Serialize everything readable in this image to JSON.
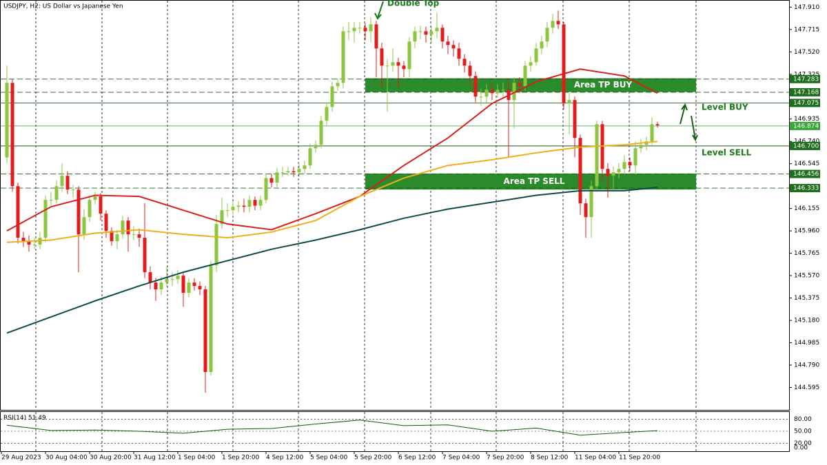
{
  "chart_data": {
    "type": "candlestick",
    "title": "USDJPY, H2:  US Dollar vs Japanese Yen",
    "up_color": "#8cc63f",
    "down_color": "#e31b1b",
    "ylim": [
      144.4,
      147.96
    ],
    "yticks": [
      {
        "value": 147.91,
        "label": "147.910"
      },
      147.715,
      {
        "value": 147.52,
        "label": "147.520"
      },
      147.325,
      146.935,
      {
        "value": 146.74,
        "label": "146.740"
      },
      146.545,
      146.155,
      {
        "value": 145.96,
        "label": "145.960"
      },
      145.765,
      {
        "value": 145.57,
        "label": "145.570"
      },
      145.375,
      {
        "value": 145.18,
        "label": "145.180"
      },
      144.985,
      {
        "value": 144.79,
        "label": "144.790"
      },
      144.595
    ],
    "xticks": [
      {
        "value": 0,
        "label": "29 Aug 2023"
      },
      {
        "value": 8,
        "label": "30 Aug 04:00"
      },
      {
        "value": 16,
        "label": "30 Aug 20:00"
      },
      {
        "value": 24,
        "label": "31 Aug 12:00"
      },
      {
        "value": 32,
        "label": "1 Sep 04:00"
      },
      {
        "value": 40,
        "label": "1 Sep 20:00"
      },
      {
        "value": 48,
        "label": "4 Sep 12:00"
      },
      {
        "value": 56,
        "label": "5 Sep 04:00"
      },
      {
        "value": 64,
        "label": "5 Sep 20:00"
      },
      {
        "value": 72,
        "label": "6 Sep 12:00"
      },
      {
        "value": 80,
        "label": "7 Sep 04:00"
      },
      {
        "value": 88,
        "label": "7 Sep 20:00"
      },
      {
        "value": 96,
        "label": "8 Sep 12:00"
      },
      {
        "value": 104,
        "label": "11 Sep 04:00"
      },
      {
        "value": 112,
        "label": "11 Sep 20:00"
      }
    ],
    "ohlc": [
      [
        146.6,
        147.4,
        146.55,
        147.25
      ],
      [
        147.25,
        147.28,
        146.3,
        146.35
      ],
      [
        146.35,
        146.38,
        145.85,
        145.9
      ],
      [
        145.9,
        145.95,
        145.82,
        145.87
      ],
      [
        145.87,
        145.92,
        145.78,
        145.84
      ],
      [
        145.84,
        145.9,
        145.8,
        145.84
      ],
      [
        145.84,
        145.95,
        145.8,
        145.9
      ],
      [
        145.9,
        146.27,
        145.86,
        146.23
      ],
      [
        146.23,
        146.3,
        146.18,
        146.23
      ],
      [
        146.23,
        146.4,
        146.2,
        146.35
      ],
      [
        146.35,
        146.55,
        146.3,
        146.44
      ],
      [
        146.44,
        146.48,
        146.28,
        146.32
      ],
      [
        146.32,
        146.36,
        146.25,
        146.32
      ],
      [
        146.32,
        146.35,
        145.6,
        145.93
      ],
      [
        145.93,
        146.15,
        145.88,
        146.08
      ],
      [
        146.08,
        146.27,
        146.04,
        146.23
      ],
      [
        146.23,
        146.3,
        146.19,
        146.26
      ],
      [
        146.26,
        146.29,
        146.05,
        146.11
      ],
      [
        146.11,
        146.14,
        145.9,
        145.96
      ],
      [
        145.96,
        145.99,
        145.83,
        145.87
      ],
      [
        145.87,
        145.97,
        145.8,
        145.93
      ],
      [
        145.93,
        146.09,
        145.89,
        146.05
      ],
      [
        146.05,
        146.08,
        145.78,
        145.93
      ],
      [
        145.93,
        146.0,
        145.88,
        145.93
      ],
      [
        145.93,
        145.98,
        145.82,
        145.9
      ],
      [
        145.9,
        146.2,
        145.55,
        145.6
      ],
      [
        145.6,
        145.65,
        145.45,
        145.51
      ],
      [
        145.51,
        145.55,
        145.35,
        145.45
      ],
      [
        145.45,
        145.56,
        145.4,
        145.51
      ],
      [
        145.51,
        145.65,
        145.47,
        145.54
      ],
      [
        145.54,
        145.6,
        145.48,
        145.54
      ],
      [
        145.54,
        145.62,
        145.5,
        145.57
      ],
      [
        145.57,
        145.6,
        145.3,
        145.42
      ],
      [
        145.42,
        145.55,
        145.38,
        145.51
      ],
      [
        145.51,
        145.55,
        145.44,
        145.48
      ],
      [
        145.48,
        145.52,
        145.4,
        145.45
      ],
      [
        145.45,
        145.48,
        144.55,
        144.73
      ],
      [
        144.73,
        145.7,
        144.7,
        145.66
      ],
      [
        145.66,
        146.1,
        145.6,
        146.02
      ],
      [
        146.02,
        146.25,
        145.98,
        146.14
      ],
      [
        146.14,
        146.2,
        146.08,
        146.14
      ],
      [
        146.14,
        146.22,
        146.1,
        146.17
      ],
      [
        146.17,
        146.22,
        146.12,
        146.18
      ],
      [
        146.18,
        146.24,
        146.12,
        146.17
      ],
      [
        146.17,
        146.27,
        146.12,
        146.23
      ],
      [
        146.23,
        146.26,
        146.14,
        146.18
      ],
      [
        146.18,
        146.27,
        146.14,
        146.23
      ],
      [
        146.23,
        146.46,
        146.2,
        146.42
      ],
      [
        146.42,
        146.46,
        146.34,
        146.38
      ],
      [
        146.38,
        146.51,
        146.34,
        146.47
      ],
      [
        146.47,
        146.52,
        146.43,
        146.47
      ],
      [
        146.47,
        146.52,
        146.44,
        146.48
      ],
      [
        146.48,
        146.52,
        146.43,
        146.47
      ],
      [
        146.47,
        146.54,
        146.43,
        146.5
      ],
      [
        146.5,
        146.57,
        146.46,
        146.53
      ],
      [
        146.53,
        146.72,
        146.5,
        146.68
      ],
      [
        146.68,
        146.75,
        146.64,
        146.71
      ],
      [
        146.71,
        146.96,
        146.68,
        146.92
      ],
      [
        146.92,
        147.08,
        146.88,
        147.04
      ],
      [
        147.04,
        147.26,
        147.0,
        147.22
      ],
      [
        147.22,
        147.29,
        147.18,
        147.25
      ],
      [
        147.25,
        147.74,
        147.2,
        147.7
      ],
      [
        147.7,
        147.78,
        147.62,
        147.7
      ],
      [
        147.7,
        147.78,
        147.6,
        147.73
      ],
      [
        147.73,
        147.78,
        147.68,
        147.73
      ],
      [
        147.73,
        147.77,
        147.62,
        147.7
      ],
      [
        147.7,
        147.82,
        147.6,
        147.76
      ],
      [
        147.76,
        147.79,
        147.3,
        147.55
      ],
      [
        147.55,
        147.6,
        147.2,
        147.4
      ],
      [
        147.4,
        147.46,
        147.0,
        147.4
      ],
      [
        147.4,
        147.55,
        147.35,
        147.43
      ],
      [
        147.43,
        147.47,
        147.2,
        147.4
      ],
      [
        147.4,
        147.44,
        147.3,
        147.37
      ],
      [
        147.37,
        147.65,
        147.3,
        147.61
      ],
      [
        147.61,
        147.74,
        147.55,
        147.7
      ],
      [
        147.7,
        147.75,
        147.63,
        147.7
      ],
      [
        147.7,
        147.74,
        147.6,
        147.67
      ],
      [
        147.67,
        147.74,
        147.6,
        147.7
      ],
      [
        147.7,
        147.86,
        147.64,
        147.73
      ],
      [
        147.73,
        147.76,
        147.55,
        147.61
      ],
      [
        147.61,
        147.66,
        147.5,
        147.58
      ],
      [
        147.58,
        147.62,
        147.48,
        147.55
      ],
      [
        147.55,
        147.6,
        147.4,
        147.46
      ],
      [
        147.46,
        147.5,
        147.34,
        147.4
      ],
      [
        147.4,
        147.44,
        147.24,
        147.31
      ],
      [
        147.31,
        147.35,
        147.08,
        147.13
      ],
      [
        147.13,
        147.2,
        147.05,
        147.13
      ],
      [
        147.13,
        147.24,
        147.08,
        147.19
      ],
      [
        147.19,
        147.24,
        147.1,
        147.16
      ],
      [
        147.16,
        147.24,
        147.12,
        147.19
      ],
      [
        147.19,
        147.25,
        147.12,
        147.19
      ],
      [
        147.19,
        147.28,
        146.6,
        147.1
      ],
      [
        147.1,
        147.3,
        146.85,
        147.25
      ],
      [
        147.25,
        147.3,
        147.16,
        147.22
      ],
      [
        147.22,
        147.44,
        147.18,
        147.4
      ],
      [
        147.4,
        147.48,
        147.35,
        147.43
      ],
      [
        147.43,
        147.6,
        147.4,
        147.55
      ],
      [
        147.55,
        147.66,
        147.5,
        147.61
      ],
      [
        147.61,
        147.78,
        147.56,
        147.73
      ],
      [
        147.73,
        147.85,
        147.68,
        147.79
      ],
      [
        147.79,
        147.88,
        147.72,
        147.76
      ],
      [
        147.76,
        147.78,
        147.02,
        147.07
      ],
      [
        147.07,
        147.16,
        146.8,
        147.1
      ],
      [
        147.1,
        147.13,
        146.6,
        146.77
      ],
      [
        146.77,
        146.8,
        146.1,
        146.2
      ],
      [
        146.2,
        146.24,
        145.9,
        146.08
      ],
      [
        146.08,
        146.4,
        145.9,
        146.35
      ],
      [
        146.35,
        146.92,
        146.3,
        146.89
      ],
      [
        146.89,
        146.92,
        146.4,
        146.5
      ],
      [
        146.5,
        146.55,
        146.25,
        146.44
      ],
      [
        146.44,
        146.52,
        146.3,
        146.47
      ],
      [
        146.47,
        146.55,
        146.42,
        146.5
      ],
      [
        146.5,
        146.62,
        146.45,
        146.56
      ],
      [
        146.56,
        146.6,
        146.48,
        146.53
      ],
      [
        146.53,
        146.74,
        146.45,
        146.68
      ],
      [
        146.68,
        146.76,
        146.64,
        146.71
      ],
      [
        146.71,
        146.78,
        146.66,
        146.74
      ],
      [
        146.74,
        146.95,
        146.7,
        146.89
      ],
      [
        146.89,
        146.91,
        146.86,
        146.88
      ]
    ],
    "ma_x": [
      0,
      8,
      16,
      24,
      32,
      40,
      48,
      56,
      64,
      72,
      80,
      88,
      96,
      104,
      112,
      118
    ],
    "series": [
      {
        "color": "#d81e1e",
        "values": [
          145.96,
          146.17,
          146.27,
          146.26,
          146.14,
          146.02,
          145.97,
          146.11,
          146.26,
          146.53,
          146.77,
          147.07,
          147.26,
          147.37,
          147.31,
          147.16
        ]
      },
      {
        "color": "#f0ae1a",
        "values": [
          145.86,
          145.88,
          145.94,
          145.97,
          145.93,
          145.9,
          145.95,
          146.05,
          146.26,
          146.42,
          146.53,
          146.58,
          146.64,
          146.69,
          146.71,
          146.74
        ]
      },
      {
        "color": "#0e4a4a",
        "values": [
          145.07,
          145.21,
          145.35,
          145.48,
          145.6,
          145.7,
          145.8,
          145.88,
          145.97,
          146.07,
          146.15,
          146.21,
          146.27,
          146.31,
          146.31,
          146.34
        ]
      }
    ],
    "levels": [
      {
        "value": 147.283,
        "line": "dashed"
      },
      {
        "value": 147.168,
        "line": "dashed"
      },
      {
        "value": 147.075,
        "line": "solid"
      },
      {
        "value": 146.874,
        "line": "solid"
      },
      {
        "value": 146.7,
        "label": "146.700",
        "line": "solid"
      },
      {
        "value": 146.456,
        "line": "dashed"
      },
      {
        "value": 146.333,
        "line": "dashed"
      }
    ],
    "zones": [
      {
        "label": "Area TP BUY",
        "top": 147.29,
        "bottom": 147.17
      },
      {
        "label": "Area TP SELL",
        "top": 146.46,
        "bottom": 146.32
      }
    ],
    "annotations": {
      "double_top": "Double Top",
      "level_buy": "Level BUY",
      "level_sell": "Level SELL"
    },
    "rsi": {
      "name": "RSI(14)",
      "value": 51.49,
      "color": "#0a5c0a",
      "ylim": [
        0,
        100
      ],
      "yticks": [
        {
          "value": 80,
          "label": "80.00"
        },
        {
          "value": 50,
          "label": "50.00"
        },
        {
          "value": 20,
          "label": "20.00"
        },
        {
          "value": 0,
          "label": "0.00"
        }
      ],
      "values": [
        65,
        52,
        53,
        50,
        45,
        55,
        57,
        68,
        78,
        64,
        66,
        50,
        58,
        40,
        47,
        51.49
      ]
    }
  }
}
